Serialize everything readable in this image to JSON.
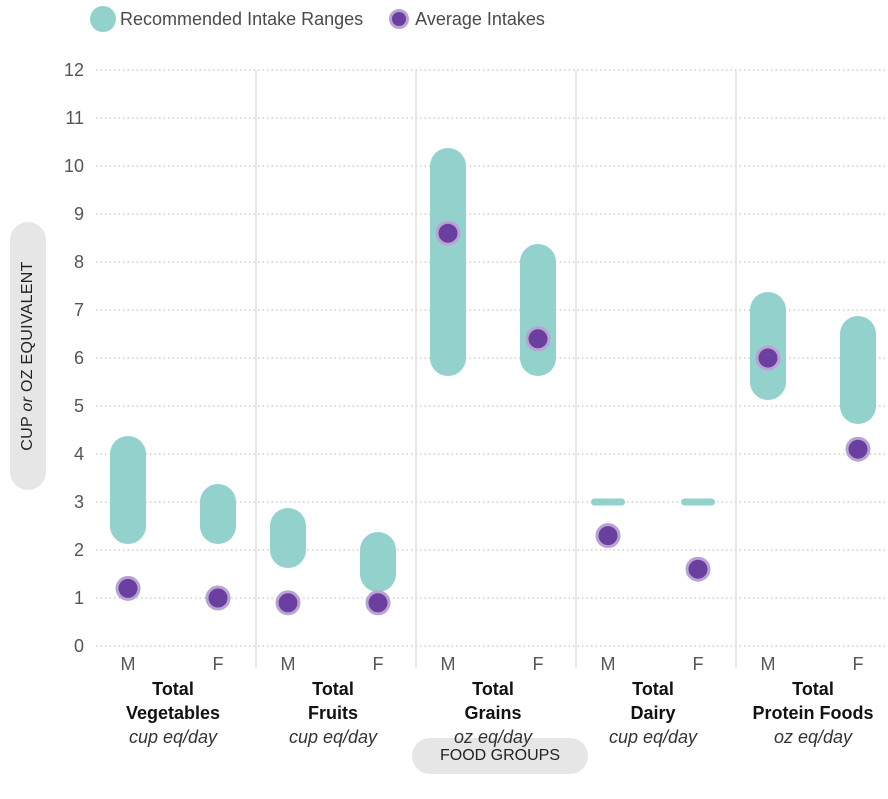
{
  "legend": {
    "range_label": "Recommended Intake Ranges",
    "avg_label": "Average Intakes"
  },
  "colors": {
    "range": "#92d1cc",
    "avg_fill": "#6b3fa0",
    "avg_ring": "#b9a3d3",
    "grid": "#b8b8b8",
    "divider": "#cfcfcf",
    "pill": "#e6e6e6"
  },
  "axis": {
    "y_label_prefix": "CUP ",
    "y_label_or": "or",
    "y_label_suffix": " OZ EQUIVALENT",
    "x_label": "FOOD GROUPS"
  },
  "chart_data": {
    "type": "scatter",
    "ylim": [
      0,
      12
    ],
    "yticks": [
      0,
      1,
      2,
      3,
      4,
      5,
      6,
      7,
      8,
      9,
      10,
      11,
      12
    ],
    "grid": true,
    "legend_position": "top-left",
    "groups": [
      {
        "name_line1": "Total",
        "name_line2": "Vegetables",
        "unit": "cup eq/day",
        "sexes": [
          {
            "sex": "M",
            "range": [
              2.5,
              4.0
            ],
            "avg": 1.2
          },
          {
            "sex": "F",
            "range": [
              2.5,
              3.0
            ],
            "avg": 1.0
          }
        ]
      },
      {
        "name_line1": "Total",
        "name_line2": "Fruits",
        "unit": "cup eq/day",
        "sexes": [
          {
            "sex": "M",
            "range": [
              2.0,
              2.5
            ],
            "avg": 0.9
          },
          {
            "sex": "F",
            "range": [
              1.5,
              2.0
            ],
            "avg": 0.9
          }
        ]
      },
      {
        "name_line1": "Total",
        "name_line2": "Grains",
        "unit": "oz eq/day",
        "sexes": [
          {
            "sex": "M",
            "range": [
              6.0,
              10.0
            ],
            "avg": 8.6
          },
          {
            "sex": "F",
            "range": [
              6.0,
              8.0
            ],
            "avg": 6.4
          }
        ]
      },
      {
        "name_line1": "Total",
        "name_line2": "Dairy",
        "unit": "cup eq/day",
        "sexes": [
          {
            "sex": "M",
            "range": [
              3.0,
              3.0
            ],
            "avg": 2.3
          },
          {
            "sex": "F",
            "range": [
              3.0,
              3.0
            ],
            "avg": 1.6
          }
        ]
      },
      {
        "name_line1": "Total",
        "name_line2": "Protein Foods",
        "unit": "oz eq/day",
        "sexes": [
          {
            "sex": "M",
            "range": [
              5.5,
              7.0
            ],
            "avg": 6.0
          },
          {
            "sex": "F",
            "range": [
              5.0,
              6.5
            ],
            "avg": 4.1
          }
        ]
      }
    ]
  }
}
